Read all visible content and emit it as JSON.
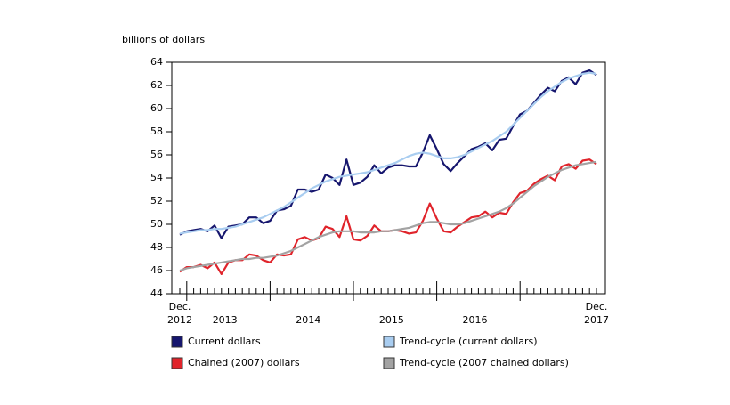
{
  "chart_data": {
    "type": "line",
    "y_axis_label": "billions of dollars",
    "categories": [
      "Dec.\n2012",
      null,
      null,
      null,
      null,
      null,
      null,
      null,
      null,
      null,
      null,
      null,
      null,
      null,
      null,
      null,
      null,
      null,
      null,
      null,
      null,
      null,
      null,
      null,
      null,
      null,
      null,
      null,
      null,
      null,
      null,
      null,
      null,
      null,
      null,
      null,
      null,
      null,
      null,
      null,
      null,
      null,
      null,
      null,
      null,
      null,
      null,
      null,
      null,
      null,
      null,
      null,
      null,
      null,
      null,
      null,
      null,
      null,
      null,
      null,
      "Dec.\n2017"
    ],
    "year_labels": [
      "2013",
      "2014",
      "2015",
      "2016"
    ],
    "ylim": [
      44,
      64
    ],
    "yticks": [
      44,
      46,
      48,
      50,
      52,
      54,
      56,
      58,
      60,
      62,
      64
    ],
    "grid": false,
    "series": [
      {
        "name": "Current dollars",
        "color": "#16166e",
        "values": [
          49.1,
          49.4,
          49.5,
          49.6,
          49.4,
          49.9,
          48.8,
          49.8,
          49.9,
          50.0,
          50.6,
          50.6,
          50.1,
          50.3,
          51.2,
          51.3,
          51.6,
          53.0,
          53.0,
          52.8,
          53.0,
          54.3,
          54.0,
          53.4,
          55.6,
          53.4,
          53.6,
          54.1,
          55.1,
          54.4,
          54.9,
          55.1,
          55.1,
          55.0,
          55.0,
          56.2,
          57.7,
          56.5,
          55.2,
          54.6,
          55.3,
          55.9,
          56.5,
          56.7,
          57.0,
          56.4,
          57.3,
          57.4,
          58.5,
          59.5,
          59.8,
          60.5,
          61.2,
          61.8,
          61.5,
          62.4,
          62.7,
          62.1,
          63.1,
          63.3,
          62.9
        ]
      },
      {
        "name": "Trend-cycle (current dollars)",
        "color": "#a9cdf0",
        "values": [
          49.2,
          49.3,
          49.4,
          49.5,
          49.5,
          49.6,
          49.6,
          49.7,
          49.8,
          50.0,
          50.2,
          50.4,
          50.6,
          50.9,
          51.2,
          51.5,
          51.9,
          52.3,
          52.7,
          53.1,
          53.4,
          53.7,
          53.9,
          54.1,
          54.2,
          54.3,
          54.4,
          54.5,
          54.7,
          54.9,
          55.1,
          55.3,
          55.6,
          55.9,
          56.1,
          56.2,
          56.1,
          55.9,
          55.7,
          55.7,
          55.8,
          56.0,
          56.3,
          56.6,
          56.9,
          57.2,
          57.6,
          58.0,
          58.6,
          59.2,
          59.8,
          60.4,
          61.0,
          61.5,
          61.9,
          62.3,
          62.6,
          62.8,
          63.0,
          63.1,
          63.0
        ]
      },
      {
        "name": "Chained (2007) dollars",
        "color": "#e0242b",
        "values": [
          45.9,
          46.3,
          46.3,
          46.5,
          46.2,
          46.7,
          45.7,
          46.7,
          46.9,
          46.9,
          47.4,
          47.3,
          46.9,
          46.7,
          47.4,
          47.3,
          47.4,
          48.7,
          48.9,
          48.6,
          48.8,
          49.8,
          49.6,
          48.9,
          50.7,
          48.7,
          48.6,
          49.0,
          49.9,
          49.4,
          49.4,
          49.5,
          49.4,
          49.2,
          49.3,
          50.3,
          51.8,
          50.5,
          49.4,
          49.3,
          49.8,
          50.2,
          50.6,
          50.7,
          51.1,
          50.6,
          51.0,
          50.9,
          51.9,
          52.7,
          52.9,
          53.5,
          53.9,
          54.2,
          53.8,
          55.0,
          55.2,
          54.8,
          55.5,
          55.6,
          55.2
        ]
      },
      {
        "name": "Trend-cycle (2007 chained dollars)",
        "color": "#a3a3a3",
        "values": [
          46.0,
          46.2,
          46.3,
          46.4,
          46.5,
          46.6,
          46.7,
          46.8,
          46.9,
          47.0,
          47.0,
          47.1,
          47.1,
          47.2,
          47.3,
          47.5,
          47.7,
          48.0,
          48.3,
          48.6,
          48.9,
          49.1,
          49.3,
          49.4,
          49.4,
          49.4,
          49.3,
          49.3,
          49.3,
          49.4,
          49.4,
          49.5,
          49.6,
          49.7,
          49.9,
          50.1,
          50.2,
          50.2,
          50.1,
          50.0,
          50.0,
          50.1,
          50.3,
          50.5,
          50.7,
          50.9,
          51.1,
          51.4,
          51.8,
          52.3,
          52.8,
          53.3,
          53.7,
          54.1,
          54.4,
          54.7,
          54.9,
          55.1,
          55.2,
          55.3,
          55.4
        ]
      }
    ]
  }
}
